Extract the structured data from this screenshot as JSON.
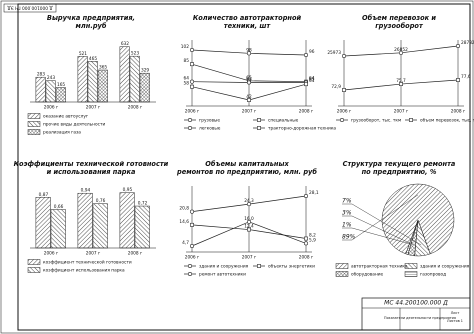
{
  "chart_data": [
    {
      "type": "bar",
      "title": [
        "Выручка предприятия,",
        "млн.руб"
      ],
      "categories": [
        "2006 г",
        "2007 г",
        "2008 г"
      ],
      "series": [
        {
          "name": "оказание автоуслуг",
          "color": "#222",
          "values": [
            283,
            521,
            632
          ]
        },
        {
          "name": "прочие виды деятельности",
          "color": "#222",
          "values": [
            243,
            465,
            523
          ]
        },
        {
          "name": "реализация газа",
          "color": "#222",
          "values": [
            165,
            365,
            329
          ]
        }
      ]
    },
    {
      "type": "line",
      "title": [
        "Количество автотракторной",
        "техники, шт"
      ],
      "categories": [
        "2006 г",
        "2007 г",
        "2008 г"
      ],
      "series": [
        {
          "name": "грузовые",
          "color": "#222",
          "values": [
            102,
            98,
            96
          ]
        },
        {
          "name": "специальные",
          "color": "#222",
          "values": [
            85,
            65,
            64
          ]
        },
        {
          "name": "легковые",
          "color": "#222",
          "values": [
            64,
            63,
            63
          ]
        },
        {
          "name": "тракторно-дорожная техника",
          "color": "#222",
          "values": [
            58,
            42,
            61
          ]
        }
      ]
    },
    {
      "type": "line",
      "title": [
        "Объем перевозок и",
        "грузооборот"
      ],
      "categories": [
        "2006 г",
        "2007 г",
        "2008 г"
      ],
      "series": [
        {
          "name": "грузооборот, тыс. ткм",
          "color": "#222",
          "values": [
            25973,
            26852,
            28732
          ]
        },
        {
          "name": "объем перевозок, тыс. т",
          "color": "#222",
          "axis": "y2",
          "values": [
            72.9,
            75.7,
            77.6
          ],
          "value_labels": [
            "72,9",
            "75,7",
            "77,6"
          ]
        }
      ]
    },
    {
      "type": "bar",
      "title": [
        "Коэффициенты технической готовности",
        "и использования парка"
      ],
      "categories": [
        "2006 г",
        "2007 г",
        "2008 г"
      ],
      "series": [
        {
          "name": "коэффициент технической готовности",
          "color": "#222",
          "values": [
            0.87,
            0.94,
            0.95
          ],
          "value_labels": [
            "0,87",
            "0,94",
            "0,95"
          ]
        },
        {
          "name": "коэффициент использования парка",
          "color": "#222",
          "values": [
            0.66,
            0.76,
            0.72
          ],
          "value_labels": [
            "0,66",
            "0,76",
            "0,72"
          ]
        }
      ]
    },
    {
      "type": "line",
      "title": [
        "Объемы капитальных",
        "ремонтов по предприятию, млн. руб"
      ],
      "categories": [
        "2006 г",
        "2007 г",
        "2008 г"
      ],
      "series": [
        {
          "name": "здания и сооружения",
          "color": "#222",
          "values": [
            20.8,
            24.3,
            28.1
          ],
          "value_labels": [
            "20,8",
            "24,3",
            "28,1"
          ]
        },
        {
          "name": "объекты энергетики",
          "color": "#222",
          "values": [
            14.6,
            12.4,
            8.2
          ],
          "value_labels": [
            "14,6",
            "12,4",
            "8,2"
          ]
        },
        {
          "name": "ремонт автотехники",
          "color": "#222",
          "values": [
            4.7,
            16.0,
            5.9
          ],
          "value_labels": [
            "4,7",
            "16,0",
            "5,9"
          ]
        }
      ]
    },
    {
      "type": "pie",
      "title": [
        "Структура текущего ремонта",
        "по предприятию, %"
      ],
      "categories": [
        "автотракторная техника",
        "здания и сооружения",
        "оборудование",
        "газопровод"
      ],
      "values": [
        89,
        7,
        3,
        1
      ],
      "value_labels": [
        "89%",
        "7%",
        "3%",
        "1%"
      ],
      "color": "#222"
    }
  ],
  "stamp": "Д 000100.000 ГЧ ЭД",
  "title_block": {
    "code": "МС 44.200100.000 Д",
    "name": "Показатели деятельности предприятия",
    "sheet": "Лист",
    "sheets": "Листов 1"
  }
}
